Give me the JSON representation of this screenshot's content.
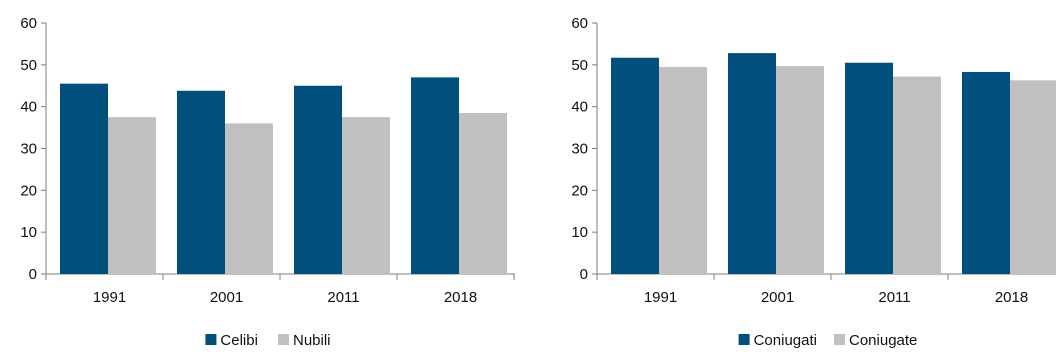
{
  "chart_data": [
    {
      "type": "bar",
      "title": "",
      "xlabel": "",
      "ylabel": "",
      "categories": [
        "1991",
        "2001",
        "2011",
        "2018"
      ],
      "ylim": [
        0,
        60
      ],
      "yticks": [
        0,
        10,
        20,
        30,
        40,
        50,
        60
      ],
      "grid": false,
      "legend_position": "bottom-center",
      "series": [
        {
          "name": "Celibi",
          "color": "#004f7c",
          "values": [
            45.5,
            43.8,
            45.0,
            47.0
          ]
        },
        {
          "name": "Nubili",
          "color": "#c0c0c0",
          "values": [
            37.5,
            36.0,
            37.5,
            38.5
          ]
        }
      ]
    },
    {
      "type": "bar",
      "title": "",
      "xlabel": "",
      "ylabel": "",
      "categories": [
        "1991",
        "2001",
        "2011",
        "2018"
      ],
      "ylim": [
        0,
        60
      ],
      "yticks": [
        0,
        10,
        20,
        30,
        40,
        50,
        60
      ],
      "grid": false,
      "legend_position": "bottom-center",
      "series": [
        {
          "name": "Coniugati",
          "color": "#004f7c",
          "values": [
            51.7,
            52.8,
            50.5,
            48.3
          ]
        },
        {
          "name": "Coniugate",
          "color": "#c0c0c0",
          "values": [
            49.5,
            49.7,
            47.2,
            46.3
          ]
        }
      ]
    }
  ]
}
